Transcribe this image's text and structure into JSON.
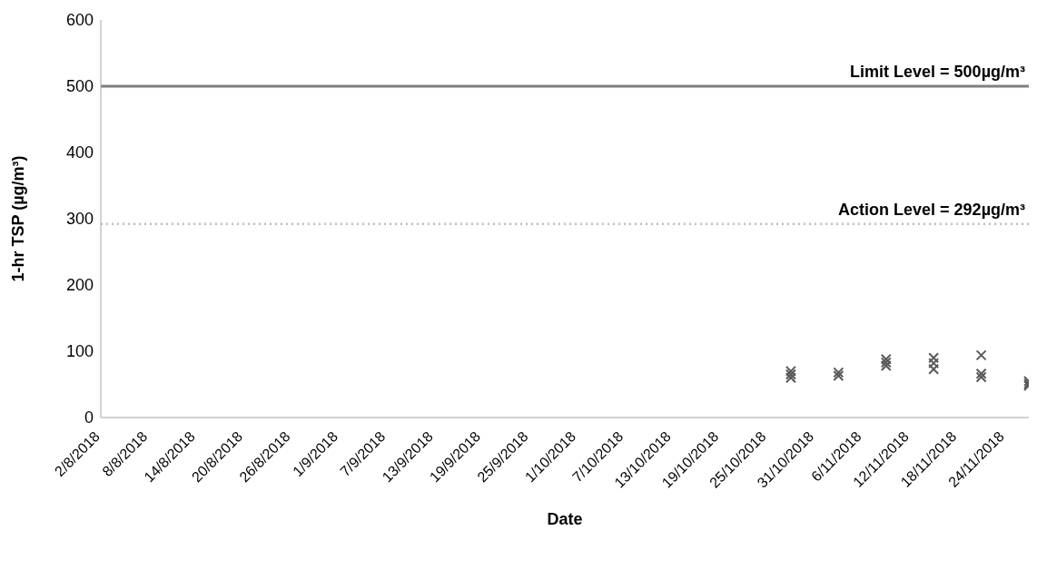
{
  "chart_data": {
    "type": "scatter",
    "xlabel": "Date",
    "ylabel": "1-hr TSP (µg/m³)",
    "x": [
      "2018-10-28",
      "2018-10-28",
      "2018-10-28",
      "2018-11-03",
      "2018-11-03",
      "2018-11-09",
      "2018-11-09",
      "2018-11-09",
      "2018-11-15",
      "2018-11-15",
      "2018-11-15",
      "2018-11-21",
      "2018-11-21",
      "2018-11-21",
      "2018-11-27",
      "2018-11-27",
      "2018-11-27"
    ],
    "series": [
      {
        "color": "#595959",
        "values": [
          70,
          65,
          60,
          68,
          63,
          88,
          83,
          78,
          90,
          82,
          73,
          94,
          66,
          61,
          55,
          51,
          48
        ]
      }
    ],
    "marker": "cross",
    "grid": false,
    "legend": false,
    "xlim": [
      "2018-08-02",
      "2018-11-27"
    ],
    "xticks": [
      {
        "value": "2018-08-02",
        "label": "2/8/2018"
      },
      {
        "value": "2018-08-08",
        "label": "8/8/2018"
      },
      {
        "value": "2018-08-14",
        "label": "14/8/2018"
      },
      {
        "value": "2018-08-20",
        "label": "20/8/2018"
      },
      {
        "value": "2018-08-26",
        "label": "26/8/2018"
      },
      {
        "value": "2018-09-01",
        "label": "1/9/2018"
      },
      {
        "value": "2018-09-07",
        "label": "7/9/2018"
      },
      {
        "value": "2018-09-13",
        "label": "13/9/2018"
      },
      {
        "value": "2018-09-19",
        "label": "19/9/2018"
      },
      {
        "value": "2018-09-25",
        "label": "25/9/2018"
      },
      {
        "value": "2018-10-01",
        "label": "1/10/2018"
      },
      {
        "value": "2018-10-07",
        "label": "7/10/2018"
      },
      {
        "value": "2018-10-13",
        "label": "13/10/2018"
      },
      {
        "value": "2018-10-19",
        "label": "19/10/2018"
      },
      {
        "value": "2018-10-25",
        "label": "25/10/2018"
      },
      {
        "value": "2018-10-31",
        "label": "31/10/2018"
      },
      {
        "value": "2018-11-06",
        "label": "6/11/2018"
      },
      {
        "value": "2018-11-12",
        "label": "12/11/2018"
      },
      {
        "value": "2018-11-18",
        "label": "18/11/2018"
      },
      {
        "value": "2018-11-24",
        "label": "24/11/2018"
      }
    ],
    "ylim": [
      0,
      600
    ],
    "yticks": [
      0,
      100,
      200,
      300,
      400,
      500,
      600
    ],
    "ref_lines": [
      {
        "axis": "y",
        "value": 500,
        "label": "Limit Level = 500µg/m³",
        "color": "#7f7f7f",
        "line_style": "solid"
      },
      {
        "axis": "y",
        "value": 292,
        "label": "Action Level = 292µg/m³",
        "color": "#bfbfbf",
        "line_style": "dotted"
      }
    ]
  }
}
